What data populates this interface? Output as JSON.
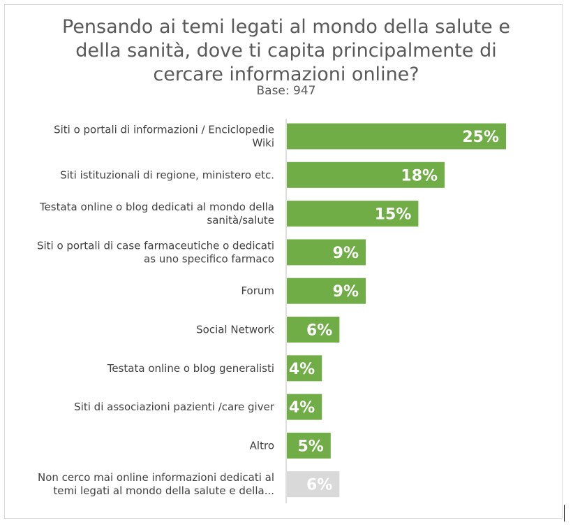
{
  "chart_data": {
    "type": "bar",
    "orientation": "horizontal",
    "title": "Pensando ai temi legati al mondo della salute e della sanità, dove ti capita principalmente di cercare informazioni online?",
    "title_lines": [
      "Pensando ai temi legati al mondo della salute e",
      "della sanità, dove ti capita principalmente di",
      "cercare informazioni online?"
    ],
    "subtitle": "Base: 947",
    "categories": [
      [
        "Siti o portali di informazioni / Enciclopedie",
        "Wiki"
      ],
      [
        "Siti istituzionali di regione, ministero etc."
      ],
      [
        "Testata online o blog dedicati al mondo della",
        "sanità/salute"
      ],
      [
        "Siti o portali di case farmaceutiche o dedicati",
        "as uno specifico farmaco"
      ],
      [
        "Forum"
      ],
      [
        "Social Network"
      ],
      [
        "Testata online o blog generalisti"
      ],
      [
        "Siti di associazioni pazienti /care giver"
      ],
      [
        "Altro"
      ],
      [
        "Non cerco mai online informazioni dedicati al",
        "temi legati al mondo della salute e della..."
      ]
    ],
    "values": [
      25,
      18,
      15,
      9,
      9,
      6,
      4,
      4,
      5,
      6
    ],
    "value_labels": [
      "25%",
      "18%",
      "15%",
      "9%",
      "9%",
      "6%",
      "4%",
      "4%",
      "5%",
      "6%"
    ],
    "unit": "%",
    "colors": [
      "#70ad47",
      "#70ad47",
      "#70ad47",
      "#70ad47",
      "#70ad47",
      "#70ad47",
      "#70ad47",
      "#70ad47",
      "#70ad47",
      "#d9d9d9"
    ],
    "axis_color": "#bfbfbf",
    "grid": false,
    "legend": "none"
  }
}
